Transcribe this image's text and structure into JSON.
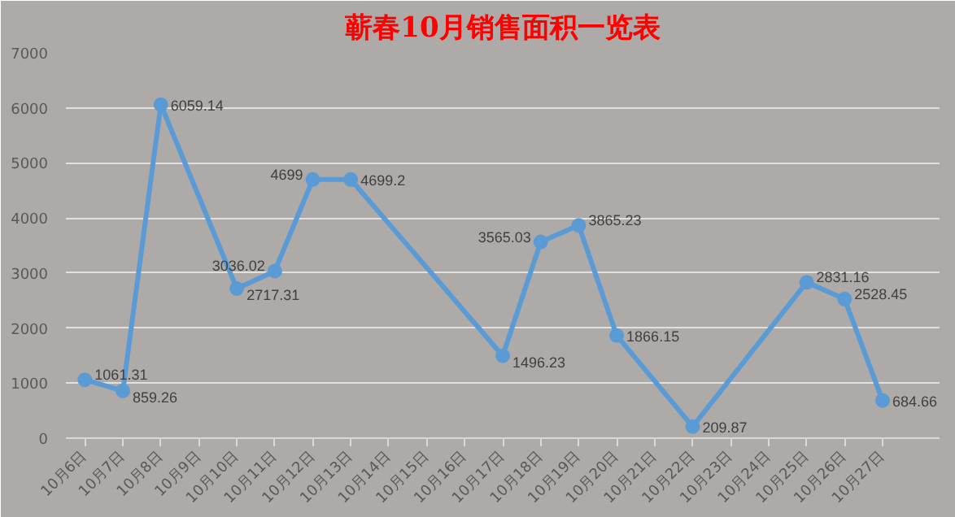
{
  "chart_data": {
    "type": "line",
    "title": "蕲春10月销售面积一览表",
    "categories": [
      "10月6日",
      "10月7日",
      "10月8日",
      "10月9日",
      "10月10日",
      "10月11日",
      "10月12日",
      "10月13日",
      "10月14日",
      "10月15日",
      "10月16日",
      "10月17日",
      "10月18日",
      "10月19日",
      "10月20日",
      "10月21日",
      "10月22日",
      "10月23日",
      "10月24日",
      "10月25日",
      "10月26日",
      "10月27日"
    ],
    "series": [
      {
        "color": "#5b9bd5",
        "values": [
          1061.31,
          859.26,
          6059.14,
          null,
          2717.31,
          3036.02,
          4699,
          4699.2,
          null,
          null,
          null,
          1496.23,
          3565.03,
          3865.23,
          1866.15,
          null,
          209.87,
          null,
          null,
          2831.16,
          2528.45,
          684.66
        ]
      }
    ],
    "ylim": [
      0,
      7000
    ],
    "yticks": [
      0,
      1000,
      2000,
      3000,
      4000,
      5000,
      6000,
      7000
    ],
    "grid": "y",
    "marker": "circle",
    "line_style": "solid",
    "data_labels": true
  }
}
